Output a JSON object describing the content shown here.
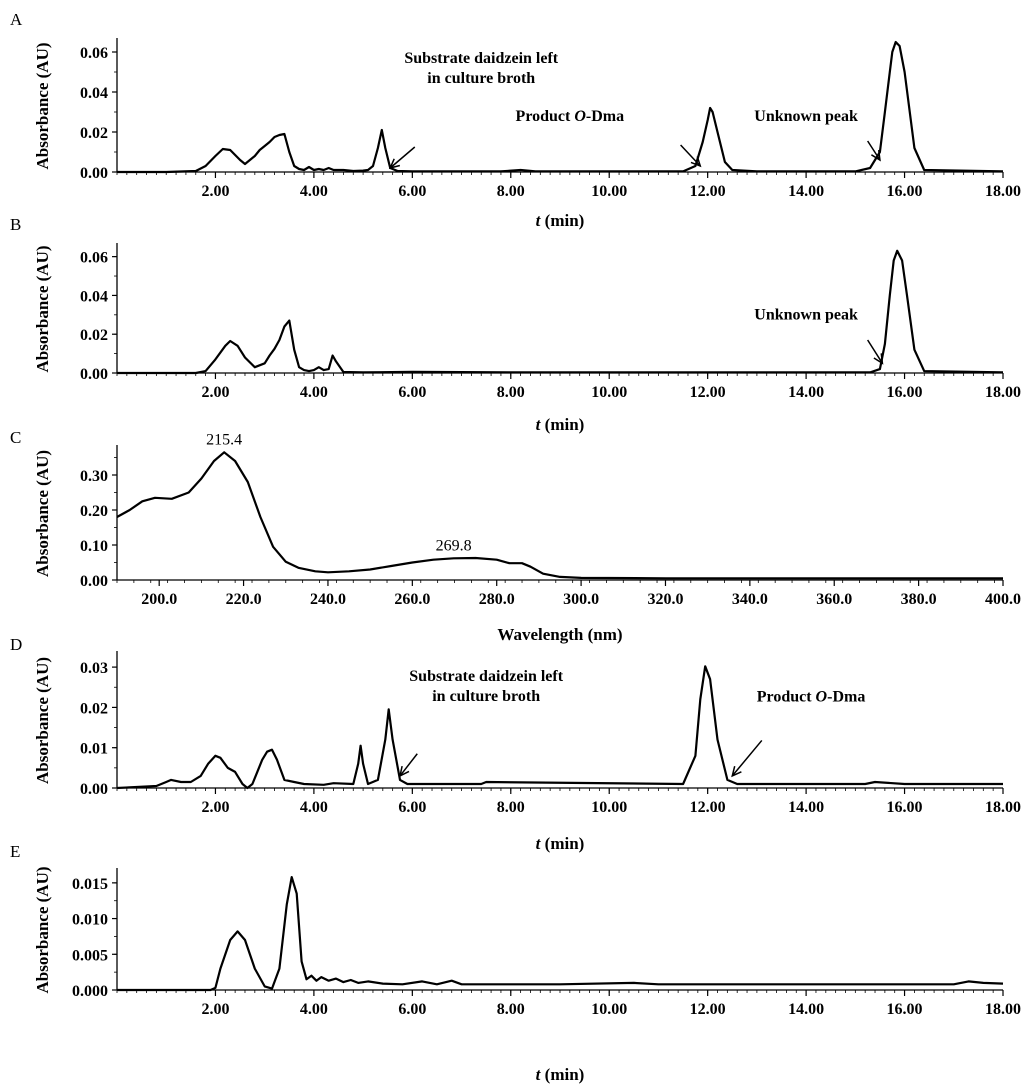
{
  "chart_data": [
    {
      "panel": "A",
      "type": "line",
      "xlabel": "t (min)",
      "ylabel": "Absorbance (AU)",
      "xlim": [
        0,
        18
      ],
      "ylim": [
        0,
        0.066
      ],
      "xticks": [
        2,
        4,
        6,
        8,
        10,
        12,
        14,
        16,
        18
      ],
      "xtick_labels": [
        "2.00",
        "4.00",
        "6.00",
        "8.00",
        "10.00",
        "12.00",
        "14.00",
        "16.00",
        "18.00"
      ],
      "yticks": [
        0,
        0.02,
        0.04,
        0.06
      ],
      "ytick_labels": [
        "0.00",
        "0.02",
        "0.04",
        "0.06"
      ],
      "x": [
        0,
        1.0,
        1.6,
        1.8,
        2.0,
        2.15,
        2.3,
        2.5,
        2.6,
        2.8,
        2.9,
        3.0,
        3.1,
        3.2,
        3.3,
        3.4,
        3.5,
        3.6,
        3.7,
        3.8,
        3.9,
        4.0,
        4.1,
        4.2,
        4.3,
        4.4,
        4.6,
        4.8,
        5.0,
        5.1,
        5.2,
        5.3,
        5.38,
        5.45,
        5.55,
        5.7,
        6.0,
        7.8,
        8.2,
        8.5,
        10.0,
        11.5,
        11.75,
        11.9,
        12.0,
        12.05,
        12.1,
        12.2,
        12.35,
        12.5,
        13.0,
        15.0,
        15.3,
        15.5,
        15.6,
        15.7,
        15.75,
        15.82,
        15.9,
        16.0,
        16.2,
        16.4,
        18.0
      ],
      "y": [
        0,
        0,
        0.0005,
        0.003,
        0.008,
        0.0115,
        0.011,
        0.006,
        0.004,
        0.008,
        0.011,
        0.013,
        0.015,
        0.0175,
        0.0185,
        0.019,
        0.01,
        0.003,
        0.0015,
        0.001,
        0.0025,
        0.001,
        0.0015,
        0.001,
        0.002,
        0.001,
        0.001,
        0.0005,
        0.0007,
        0.001,
        0.003,
        0.012,
        0.021,
        0.012,
        0.002,
        0.0005,
        0.0003,
        0.0003,
        0.001,
        0.0003,
        0.0003,
        0.0003,
        0.003,
        0.015,
        0.026,
        0.032,
        0.03,
        0.02,
        0.005,
        0.001,
        0.0003,
        0.0003,
        0.002,
        0.01,
        0.03,
        0.05,
        0.06,
        0.065,
        0.063,
        0.05,
        0.012,
        0.001,
        0.0003
      ],
      "annotations": [
        {
          "text": "Substrate daidzein left",
          "text2": "in culture broth",
          "tx": 7.4,
          "ty": 0.0545,
          "ax": 5.55,
          "ay": 0.002,
          "sx": 6.05,
          "sy": 0.0125
        },
        {
          "text": "Product O-Dma",
          "text2": "",
          "tx": 9.2,
          "ty": 0.0255,
          "ax": 11.85,
          "ay": 0.003,
          "sx": 11.45,
          "sy": 0.0135
        },
        {
          "text": "Unknown peak",
          "text2": "",
          "tx": 14.0,
          "ty": 0.0255,
          "ax": 15.5,
          "ay": 0.006,
          "sx": 15.25,
          "sy": 0.0155
        }
      ]
    },
    {
      "panel": "B",
      "type": "line",
      "xlabel": "t (min)",
      "ylabel": "Absorbance (AU)",
      "xlim": [
        0,
        18
      ],
      "ylim": [
        0,
        0.066
      ],
      "xticks": [
        2,
        4,
        6,
        8,
        10,
        12,
        14,
        16,
        18
      ],
      "xtick_labels": [
        "2.00",
        "4.00",
        "6.00",
        "8.00",
        "10.00",
        "12.00",
        "14.00",
        "16.00",
        "18.00"
      ],
      "yticks": [
        0,
        0.02,
        0.04,
        0.06
      ],
      "ytick_labels": [
        "0.00",
        "0.02",
        "0.04",
        "0.06"
      ],
      "x": [
        0,
        1.6,
        1.8,
        2.0,
        2.2,
        2.3,
        2.45,
        2.6,
        2.8,
        3.0,
        3.1,
        3.2,
        3.3,
        3.4,
        3.5,
        3.6,
        3.7,
        3.8,
        3.9,
        4.0,
        4.1,
        4.2,
        4.3,
        4.38,
        4.45,
        4.6,
        5.0,
        6.0,
        8.0,
        15.3,
        15.5,
        15.6,
        15.7,
        15.78,
        15.85,
        15.95,
        16.05,
        16.2,
        16.4,
        18.0
      ],
      "y": [
        0,
        0,
        0.001,
        0.007,
        0.014,
        0.0165,
        0.014,
        0.008,
        0.003,
        0.005,
        0.009,
        0.0125,
        0.017,
        0.024,
        0.027,
        0.012,
        0.003,
        0.0015,
        0.001,
        0.0015,
        0.003,
        0.0015,
        0.002,
        0.009,
        0.006,
        0.0005,
        0.0003,
        0.0006,
        0.0003,
        0.0003,
        0.002,
        0.015,
        0.04,
        0.058,
        0.063,
        0.058,
        0.04,
        0.012,
        0.001,
        0.0003
      ],
      "annotations": [
        {
          "text": "Unknown peak",
          "text2": "",
          "tx": 14.0,
          "ty": 0.0275,
          "ax": 15.55,
          "ay": 0.005,
          "sx": 15.25,
          "sy": 0.017
        }
      ]
    },
    {
      "panel": "C",
      "type": "line",
      "xlabel": "Wavelength (nm)",
      "ylabel": "Absorbance (AU)",
      "xlim": [
        190,
        400
      ],
      "ylim": [
        0,
        0.38
      ],
      "xticks": [
        200,
        220,
        240,
        260,
        280,
        300,
        320,
        340,
        360,
        380,
        400
      ],
      "xtick_labels": [
        "200.0",
        "220.0",
        "240.0",
        "260.0",
        "280.0",
        "300.0",
        "320.0",
        "340.0",
        "360.0",
        "380.0",
        "400.0"
      ],
      "yticks": [
        0,
        0.1,
        0.2,
        0.3
      ],
      "ytick_labels": [
        "0.00",
        "0.10",
        "0.20",
        "0.30"
      ],
      "x": [
        190,
        193,
        196,
        199,
        203,
        207,
        210,
        213,
        215.4,
        218,
        221,
        224,
        227,
        230,
        233,
        237,
        240,
        245,
        250,
        255,
        260,
        265,
        269.8,
        275,
        280,
        283,
        286,
        288,
        291,
        295,
        300,
        320,
        400
      ],
      "y": [
        0.18,
        0.2,
        0.225,
        0.235,
        0.232,
        0.25,
        0.29,
        0.34,
        0.365,
        0.34,
        0.28,
        0.18,
        0.095,
        0.052,
        0.035,
        0.025,
        0.022,
        0.025,
        0.03,
        0.04,
        0.05,
        0.058,
        0.062,
        0.063,
        0.058,
        0.048,
        0.048,
        0.038,
        0.018,
        0.009,
        0.006,
        0.005,
        0.005
      ],
      "peak_labels": [
        {
          "text": "215.4",
          "x": 215.4,
          "y": 0.365
        },
        {
          "text": "269.8",
          "x": 269.8,
          "y": 0.062
        }
      ]
    },
    {
      "panel": "D",
      "type": "line",
      "xlabel": "t (min)",
      "ylabel": "Absorbance (AU)",
      "xlim": [
        0,
        18
      ],
      "ylim": [
        0,
        0.0335
      ],
      "xticks": [
        2,
        4,
        6,
        8,
        10,
        12,
        14,
        16,
        18
      ],
      "xtick_labels": [
        "2.00",
        "4.00",
        "6.00",
        "8.00",
        "10.00",
        "12.00",
        "14.00",
        "16.00",
        "18.00"
      ],
      "yticks": [
        0,
        0.01,
        0.02,
        0.03
      ],
      "ytick_labels": [
        "0.00",
        "0.01",
        "0.02",
        "0.03"
      ],
      "x": [
        0,
        0.8,
        1.0,
        1.1,
        1.3,
        1.5,
        1.7,
        1.85,
        2.0,
        2.1,
        2.25,
        2.4,
        2.55,
        2.65,
        2.75,
        2.85,
        2.95,
        3.05,
        3.15,
        3.25,
        3.4,
        3.6,
        3.8,
        4.2,
        4.4,
        4.8,
        4.9,
        4.95,
        5.0,
        5.1,
        5.3,
        5.45,
        5.52,
        5.6,
        5.75,
        5.9,
        7.4,
        7.5,
        11.5,
        11.75,
        11.85,
        11.95,
        12.05,
        12.2,
        12.4,
        12.6,
        15.2,
        15.4,
        16.0,
        18.0
      ],
      "y": [
        0,
        0.0005,
        0.0015,
        0.002,
        0.0015,
        0.0015,
        0.003,
        0.006,
        0.008,
        0.0075,
        0.005,
        0.004,
        0.001,
        0,
        0.001,
        0.004,
        0.007,
        0.009,
        0.0095,
        0.007,
        0.002,
        0.0015,
        0.001,
        0.0008,
        0.0012,
        0.001,
        0.006,
        0.0105,
        0.006,
        0.001,
        0.002,
        0.012,
        0.0195,
        0.012,
        0.002,
        0.001,
        0.001,
        0.0015,
        0.001,
        0.008,
        0.022,
        0.0302,
        0.027,
        0.012,
        0.002,
        0.001,
        0.001,
        0.0015,
        0.001,
        0.001
      ],
      "annotations": [
        {
          "text": "Substrate daidzein left",
          "text2": "in culture broth",
          "tx": 7.5,
          "ty": 0.0265,
          "ax": 5.75,
          "ay": 0.003,
          "sx": 6.1,
          "sy": 0.0085
        },
        {
          "text": "Product O-Dma",
          "text2": "",
          "tx": 14.1,
          "ty": 0.0215,
          "ax": 12.5,
          "ay": 0.003,
          "sx": 13.1,
          "sy": 0.0118
        }
      ]
    },
    {
      "panel": "E",
      "type": "line",
      "xlabel": "t (min)",
      "ylabel": "Absorbance (AU)",
      "xlim": [
        0,
        18
      ],
      "ylim": [
        0,
        0.0168
      ],
      "xticks": [
        2,
        4,
        6,
        8,
        10,
        12,
        14,
        16,
        18
      ],
      "xtick_labels": [
        "2.00",
        "4.00",
        "6.00",
        "8.00",
        "10.00",
        "12.00",
        "14.00",
        "16.00",
        "18.00"
      ],
      "yticks": [
        0,
        0.005,
        0.01,
        0.015
      ],
      "ytick_labels": [
        "0.000",
        "0.005",
        "0.010",
        "0.015"
      ],
      "x": [
        0,
        1.9,
        2.0,
        2.1,
        2.3,
        2.45,
        2.6,
        2.8,
        3.0,
        3.15,
        3.3,
        3.45,
        3.55,
        3.65,
        3.75,
        3.85,
        3.95,
        4.05,
        4.15,
        4.3,
        4.45,
        4.6,
        4.75,
        4.9,
        5.1,
        5.4,
        5.8,
        6.2,
        6.5,
        6.8,
        7.0,
        7.5,
        9.0,
        10.5,
        11.0,
        17.0,
        17.3,
        17.6,
        18.0
      ],
      "y": [
        0,
        0,
        0.0003,
        0.003,
        0.007,
        0.0082,
        0.007,
        0.003,
        0.0005,
        0.0002,
        0.003,
        0.012,
        0.0158,
        0.0135,
        0.004,
        0.0015,
        0.002,
        0.0013,
        0.0018,
        0.0013,
        0.0016,
        0.0011,
        0.0014,
        0.001,
        0.0012,
        0.0009,
        0.0008,
        0.0012,
        0.0008,
        0.0013,
        0.0008,
        0.0008,
        0.0008,
        0.001,
        0.0008,
        0.0008,
        0.0012,
        0.001,
        0.0009
      ],
      "annotations": []
    }
  ]
}
